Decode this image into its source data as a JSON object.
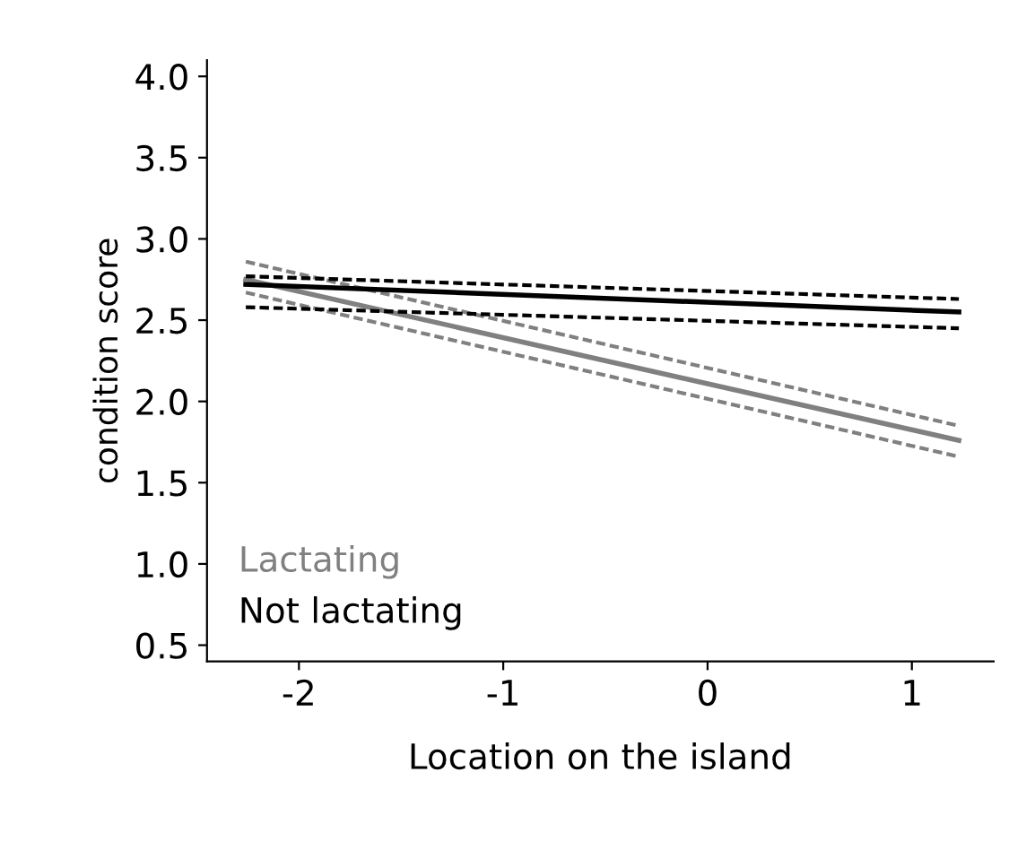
{
  "chart_data": {
    "type": "line",
    "xlabel": "Location on the island",
    "ylabel": "condition score",
    "xlim": [
      -2.45,
      1.4
    ],
    "ylim": [
      0.4,
      4.1
    ],
    "xticks": [
      {
        "value": -2,
        "label": "-2"
      },
      {
        "value": -1,
        "label": "-1"
      },
      0,
      1
    ],
    "yticks": [
      {
        "value": 0.5,
        "label": "0.5"
      },
      {
        "value": 1.0,
        "label": "1.0"
      },
      {
        "value": 1.5,
        "label": "1.5"
      },
      {
        "value": 2.0,
        "label": "2.0"
      },
      {
        "value": 2.5,
        "label": "2.5"
      },
      {
        "value": 3.0,
        "label": "3.0"
      },
      {
        "value": 3.5,
        "label": "3.5"
      },
      {
        "value": 4.0,
        "label": "4.0"
      }
    ],
    "x": [
      -2.26,
      1.23
    ],
    "grid": false,
    "legend": "bottom left",
    "marker": "none",
    "line_style": "solid",
    "series": [
      {
        "name": "Lactating",
        "color": "#808080",
        "values": [
          2.75,
          1.76
        ]
      },
      {
        "color": "#808080",
        "values": [
          2.86,
          1.85
        ],
        "line_style": "dashed"
      },
      {
        "color": "#808080",
        "values": [
          2.67,
          1.66
        ],
        "line_style": "dashed"
      },
      {
        "name": "Not lactating",
        "color": "#000000",
        "values": [
          2.72,
          2.55
        ]
      },
      {
        "color": "#000000",
        "values": [
          2.77,
          2.63
        ],
        "line_style": "dashed"
      },
      {
        "color": "#000000",
        "values": [
          2.58,
          2.45
        ],
        "line_style": "dashed"
      }
    ]
  }
}
